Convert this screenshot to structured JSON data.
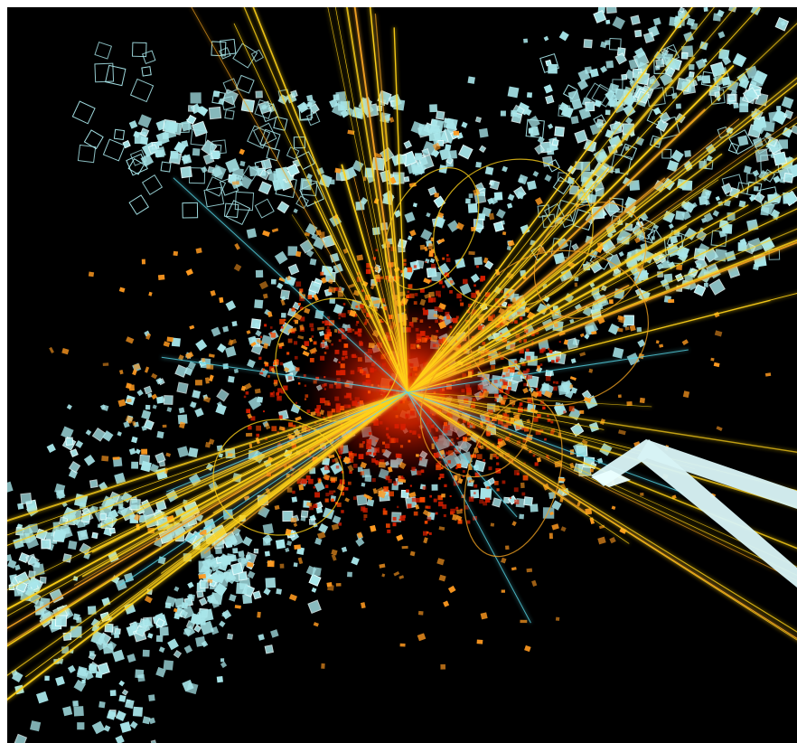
{
  "image": {
    "subject": "particle-collision-event-display",
    "colors": {
      "background": "#000000",
      "frame": "#ffffff",
      "detector_hits": "#a8e6ea",
      "tracks_primary": "#ffd21a",
      "tracks_secondary": "#f0a020",
      "core_energy": "#d81e00",
      "core_glow": "#ff4a00",
      "orange_hits": "#ff9a20",
      "support_structure": "#d7f3f5"
    }
  }
}
